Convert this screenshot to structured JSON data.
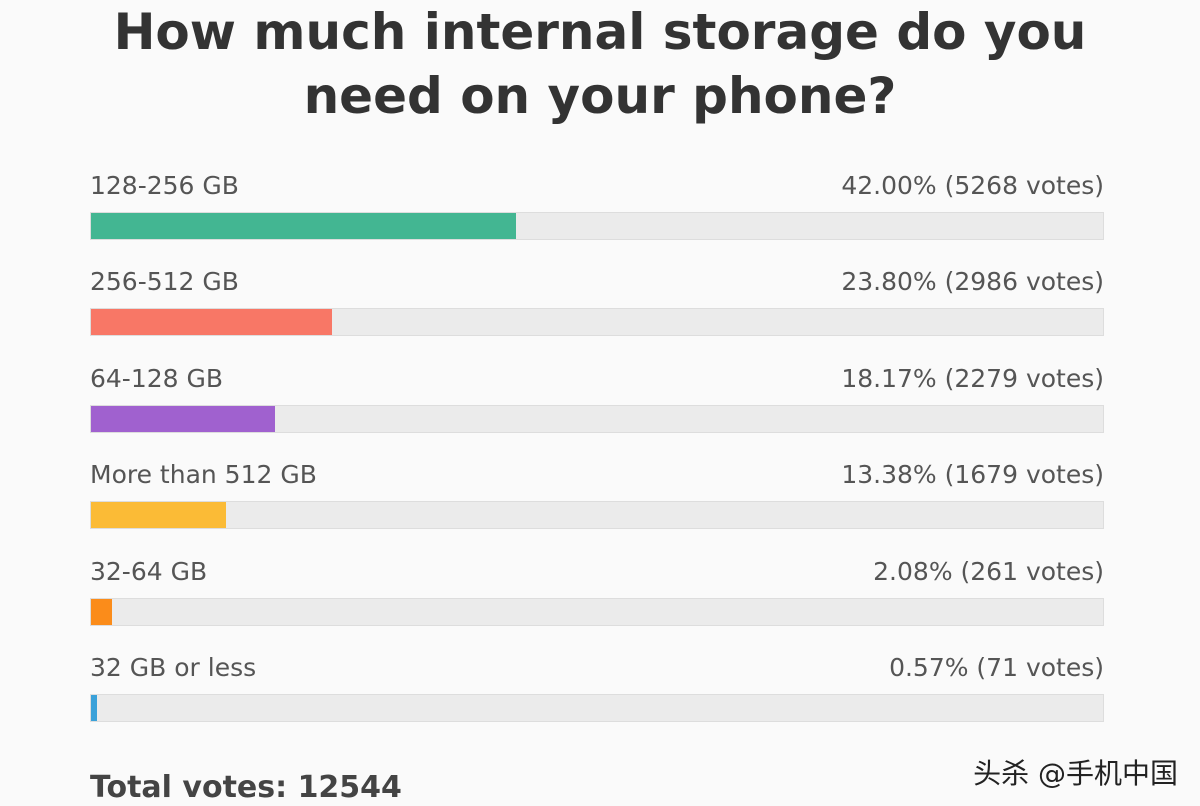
{
  "chart_data": {
    "type": "bar",
    "orientation": "horizontal",
    "title": "How much internal storage do you need on your phone?",
    "categories": [
      "128-256 GB",
      "256-512 GB",
      "64-128 GB",
      "More than 512 GB",
      "32-64 GB",
      "32 GB or less"
    ],
    "values": [
      42.0,
      23.8,
      18.17,
      13.38,
      2.08,
      0.57
    ],
    "value_labels": [
      "42.00% (5268 votes)",
      "23.80% (2986 votes)",
      "18.17% (2279 votes)",
      "13.38% (1679 votes)",
      "2.08% (261 votes)",
      "0.57% (71 votes)"
    ],
    "colors": [
      "#43b692",
      "#f87766",
      "#a061cf",
      "#fbbb36",
      "#fb8c1a",
      "#3aa1d9"
    ],
    "xlim": [
      0,
      100
    ],
    "total_label": "Total votes:",
    "total": 12544,
    "watermark": "头杀 @手机中国"
  }
}
